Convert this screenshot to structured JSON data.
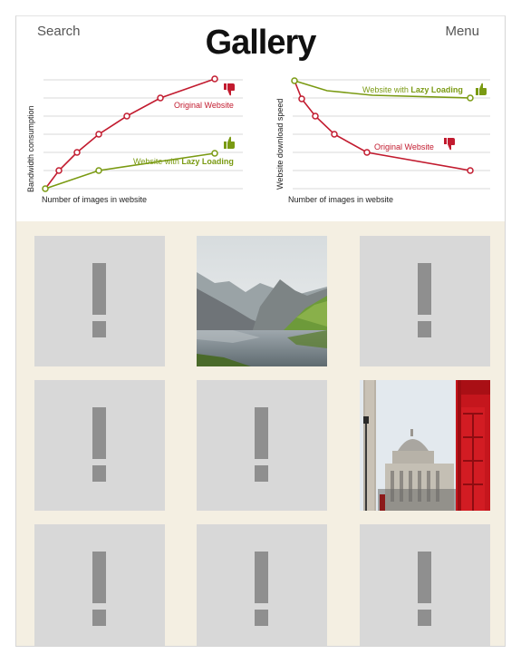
{
  "nav": {
    "search_label": "Search",
    "menu_label": "Menu",
    "title": "Gallery"
  },
  "charts": [
    {
      "ylabel": "Bandwidth consumption",
      "xlabel": "Number of images in website",
      "original_label": "Original Website",
      "lazy_label_prefix": "Website with ",
      "lazy_label_bold": "Lazy Loading"
    },
    {
      "ylabel": "Website download speed",
      "xlabel": "Number of images in website",
      "original_label": "Original Website",
      "lazy_label_prefix": "Website with ",
      "lazy_label_bold": "Lazy Loading"
    }
  ],
  "colors": {
    "original": "#c21b2f",
    "lazy": "#7a9a12",
    "gallery_bg": "#f4efe2",
    "placeholder": "#d8d8d8",
    "placeholder_mark": "#8f8f8f"
  },
  "gallery": {
    "tiles": [
      {
        "state": "placeholder",
        "icon": "exclamation-icon"
      },
      {
        "state": "loaded",
        "image": "mountain-lake-photo"
      },
      {
        "state": "placeholder",
        "icon": "exclamation-icon"
      },
      {
        "state": "placeholder",
        "icon": "exclamation-icon"
      },
      {
        "state": "placeholder",
        "icon": "exclamation-icon"
      },
      {
        "state": "loaded",
        "image": "london-street-phone-box-photo"
      },
      {
        "state": "placeholder",
        "icon": "exclamation-icon"
      },
      {
        "state": "placeholder",
        "icon": "exclamation-icon"
      },
      {
        "state": "placeholder",
        "icon": "exclamation-icon"
      }
    ]
  }
}
